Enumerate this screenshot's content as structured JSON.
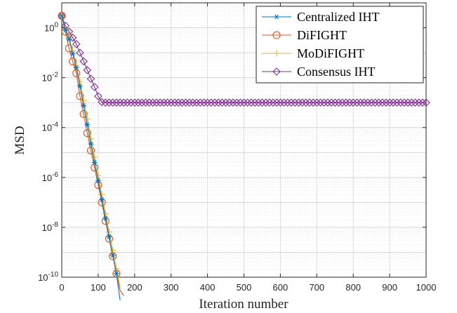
{
  "chart_data": {
    "type": "line",
    "title": "",
    "xlabel": "Iteration number",
    "ylabel": "MSD",
    "xlim": [
      0,
      1000
    ],
    "ylim_log10": [
      -10,
      1
    ],
    "yscale": "log",
    "grid": true,
    "minor_grid": true,
    "legend_position": "top-right",
    "x_ticks": [
      0,
      100,
      200,
      300,
      400,
      500,
      600,
      700,
      800,
      900,
      1000
    ],
    "y_tick_exponents": [
      -10,
      -8,
      -6,
      -4,
      -2,
      0
    ],
    "y_tick_labels": [
      {
        "base": "10",
        "exp": "-10"
      },
      {
        "base": "10",
        "exp": "-8"
      },
      {
        "base": "10",
        "exp": "-6"
      },
      {
        "base": "10",
        "exp": "-4"
      },
      {
        "base": "10",
        "exp": "-2"
      },
      {
        "base": "10",
        "exp": "0"
      }
    ],
    "series": [
      {
        "name": "Centralized IHT",
        "color": "#0072BD",
        "marker": "asterisk",
        "x": [
          0,
          10,
          20,
          30,
          40,
          50,
          60,
          70,
          80,
          90,
          100,
          110,
          120,
          130,
          140,
          150,
          160
        ],
        "y": [
          3,
          0.8,
          0.35,
          0.09,
          0.025,
          0.0045,
          0.00075,
          0.00013,
          2.2e-05,
          4e-06,
          7.5e-07,
          1.3e-07,
          2.3e-08,
          4.2e-09,
          7.5e-10,
          1.4e-10,
          1.2e-11
        ]
      },
      {
        "name": "DiFIGHT",
        "color": "#D95319",
        "marker": "circle",
        "x": [
          0,
          10,
          20,
          30,
          40,
          50,
          60,
          70,
          80,
          90,
          100,
          110,
          120,
          130,
          140,
          150,
          160,
          170
        ],
        "y": [
          3,
          0.7,
          0.15,
          0.045,
          0.015,
          0.0018,
          0.00035,
          6e-05,
          1.2e-05,
          2.5e-06,
          5e-07,
          1e-07,
          1.8e-08,
          3.5e-09,
          7e-10,
          1.4e-10,
          3e-11,
          1.8e-11
        ]
      },
      {
        "name": "MoDiFIGHT",
        "color": "#EDB120",
        "marker": "plus",
        "x": [
          0,
          10,
          20,
          30,
          40,
          50,
          60,
          70,
          80,
          90,
          100,
          110,
          120,
          130,
          140,
          150,
          160
        ],
        "y": [
          3,
          0.9,
          0.4,
          0.12,
          0.03,
          0.007,
          0.0012,
          0.00022,
          3.5e-05,
          6.5e-06,
          1.2e-06,
          2e-07,
          3.5e-08,
          6.5e-09,
          1.2e-09,
          2.2e-10,
          4e-11
        ]
      },
      {
        "name": "Consensus IHT",
        "color": "#7E2F8E",
        "marker": "diamond",
        "x": [
          0,
          10,
          20,
          30,
          40,
          50,
          60,
          70,
          80,
          90,
          100,
          110,
          120,
          130,
          140,
          150,
          160,
          170,
          180,
          190,
          200,
          210,
          220,
          230,
          240,
          250,
          260,
          270,
          280,
          290,
          300,
          310,
          320,
          330,
          340,
          350,
          360,
          370,
          380,
          390,
          400,
          410,
          420,
          430,
          440,
          450,
          460,
          470,
          480,
          490,
          500,
          510,
          520,
          530,
          540,
          550,
          560,
          570,
          580,
          590,
          600,
          610,
          620,
          630,
          640,
          650,
          660,
          670,
          680,
          690,
          700,
          710,
          720,
          730,
          740,
          750,
          760,
          770,
          780,
          790,
          800,
          810,
          820,
          830,
          840,
          850,
          860,
          870,
          880,
          890,
          900,
          910,
          920,
          930,
          940,
          950,
          960,
          970,
          980,
          990,
          1000
        ],
        "y": [
          3,
          1.2,
          0.7,
          0.4,
          0.22,
          0.1,
          0.045,
          0.02,
          0.009,
          0.0042,
          0.0018,
          0.00105,
          0.001,
          0.001,
          0.001,
          0.001,
          0.001,
          0.001,
          0.001,
          0.001,
          0.001,
          0.001,
          0.001,
          0.001,
          0.001,
          0.001,
          0.001,
          0.001,
          0.001,
          0.001,
          0.001,
          0.001,
          0.001,
          0.001,
          0.001,
          0.001,
          0.001,
          0.001,
          0.001,
          0.001,
          0.001,
          0.001,
          0.001,
          0.001,
          0.001,
          0.001,
          0.001,
          0.001,
          0.001,
          0.001,
          0.001,
          0.001,
          0.001,
          0.001,
          0.001,
          0.001,
          0.001,
          0.001,
          0.001,
          0.001,
          0.001,
          0.001,
          0.001,
          0.001,
          0.001,
          0.001,
          0.001,
          0.001,
          0.001,
          0.001,
          0.001,
          0.001,
          0.001,
          0.001,
          0.001,
          0.001,
          0.001,
          0.001,
          0.001,
          0.001,
          0.001,
          0.001,
          0.001,
          0.001,
          0.001,
          0.001,
          0.001,
          0.001,
          0.001,
          0.001,
          0.001,
          0.001,
          0.001,
          0.001,
          0.001,
          0.001,
          0.001,
          0.001,
          0.001,
          0.001,
          0.001
        ]
      }
    ]
  }
}
